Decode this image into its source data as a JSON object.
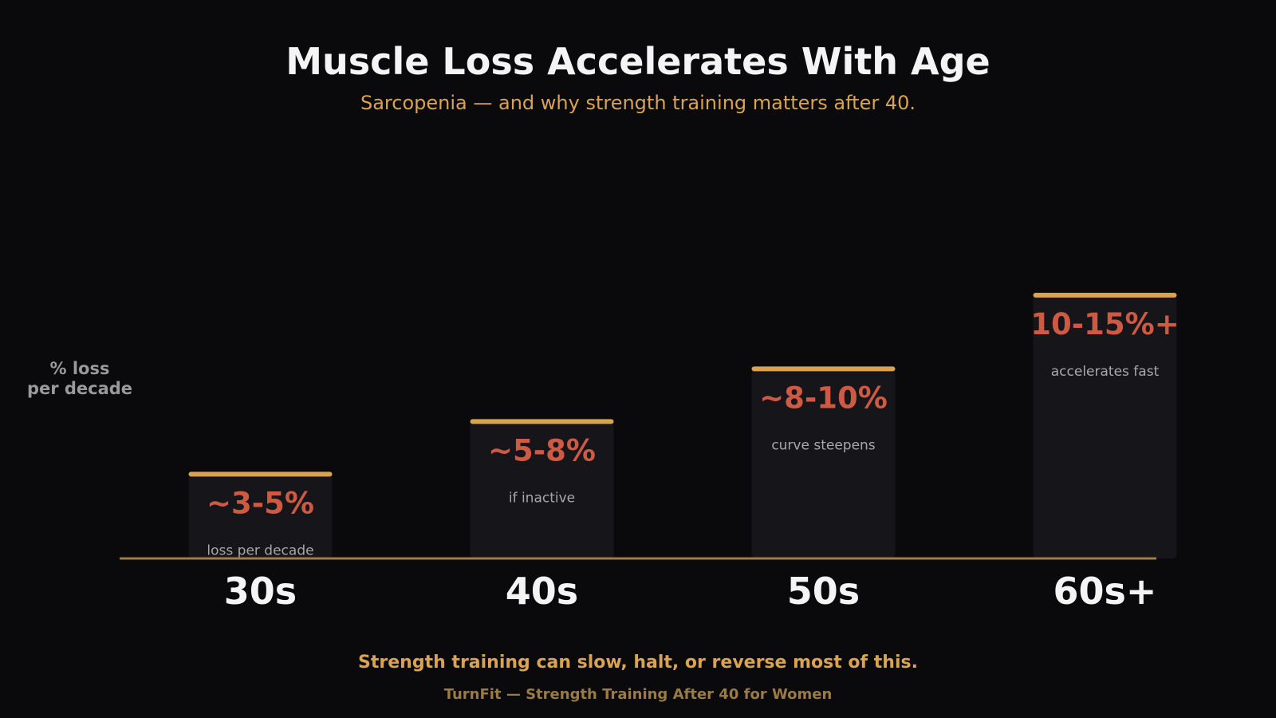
{
  "title": "Muscle Loss Accelerates With Age",
  "subtitle": "Sarcopenia — and why strength training matters after 40.",
  "ylabel": "% loss\nper decade",
  "footer": {
    "headline": "Strength training can slow, halt, or reverse most of this.",
    "brand": "TurnFit — Strength Training After 40 for Women"
  },
  "colors": {
    "background": "#0a0a0c",
    "bar": "#16151a",
    "bar_cap": "#d9a352",
    "value_label": "#cf5a44",
    "note_label": "#a8a8a8",
    "axis": "#a07c45",
    "category_label": "#f4f4f4"
  },
  "chart_data": {
    "type": "bar",
    "title": "Muscle Loss Accelerates With Age",
    "subtitle": "Sarcopenia — and why strength training matters after 40.",
    "xlabel": "",
    "ylabel": "% loss per decade",
    "categories": [
      "30s",
      "40s",
      "50s",
      "60s+"
    ],
    "values": [
      4,
      6.5,
      9,
      12.5
    ],
    "value_labels": [
      "~3-5%",
      "~5-8%",
      "~8-10%",
      "10-15%+"
    ],
    "notes": [
      "loss per decade",
      "if inactive",
      "curve steepens",
      "accelerates fast"
    ],
    "ylim": [
      0,
      20
    ],
    "grid": false,
    "legend": "none"
  }
}
